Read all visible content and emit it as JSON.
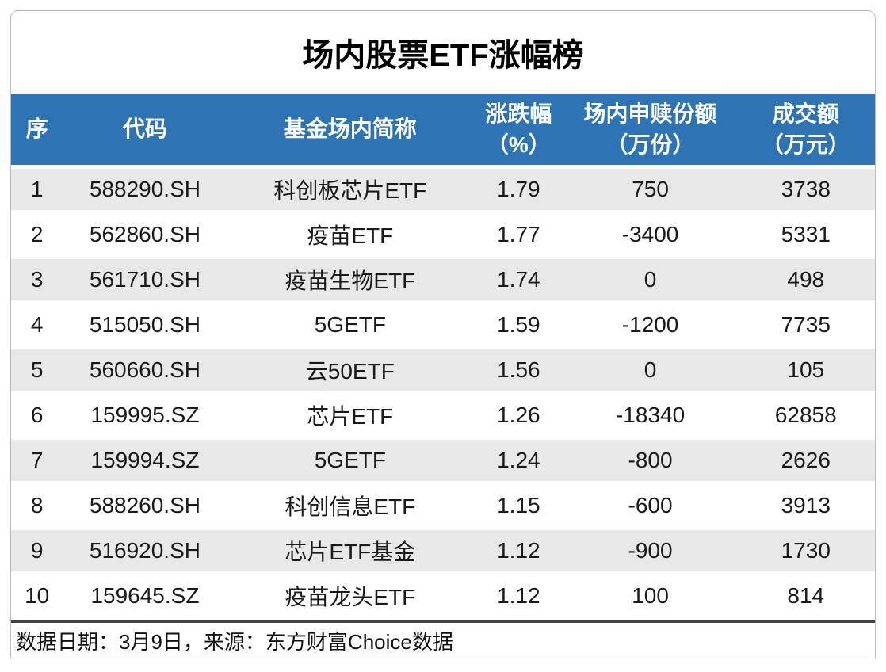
{
  "page_title": "场内股票ETF涨幅榜",
  "chart_data": {
    "type": "table",
    "title": "场内股票ETF涨幅榜",
    "columns": [
      {
        "label": "序",
        "unit": ""
      },
      {
        "label": "代码",
        "unit": ""
      },
      {
        "label": "基金场内简称",
        "unit": ""
      },
      {
        "label": "涨跌幅",
        "unit": "（%）"
      },
      {
        "label": "场内申赎份额",
        "unit": "（万份）"
      },
      {
        "label": "成交额",
        "unit": "（万元）"
      }
    ],
    "rows": [
      [
        "1",
        "588290.SH",
        "科创板芯片ETF",
        "1.79",
        "750",
        "3738"
      ],
      [
        "2",
        "562860.SH",
        "疫苗ETF",
        "1.77",
        "-3400",
        "5331"
      ],
      [
        "3",
        "561710.SH",
        "疫苗生物ETF",
        "1.74",
        "0",
        "498"
      ],
      [
        "4",
        "515050.SH",
        "5GETF",
        "1.59",
        "-1200",
        "7735"
      ],
      [
        "5",
        "560660.SH",
        "云50ETF",
        "1.56",
        "0",
        "105"
      ],
      [
        "6",
        "159995.SZ",
        "芯片ETF",
        "1.26",
        "-18340",
        "62858"
      ],
      [
        "7",
        "159994.SZ",
        "5GETF",
        "1.24",
        "-800",
        "2626"
      ],
      [
        "8",
        "588260.SH",
        "科创信息ETF",
        "1.15",
        "-600",
        "3913"
      ],
      [
        "9",
        "516920.SH",
        "芯片ETF基金",
        "1.12",
        "-900",
        "1730"
      ],
      [
        "10",
        "159645.SZ",
        "疫苗龙头ETF",
        "1.12",
        "100",
        "814"
      ]
    ],
    "footnote": "数据日期：3月9日，来源：东方财富Choice数据",
    "layout": {
      "legend": "none",
      "grid": "off",
      "row_striping": "odd-rows-gray"
    }
  },
  "colors": {
    "header_bg": "#2E74B5",
    "header_text": "#FFFFFF",
    "row_alt_bg": "#E8E8E8",
    "footer_border": "#404040",
    "card_border": "#BFBFBF"
  }
}
